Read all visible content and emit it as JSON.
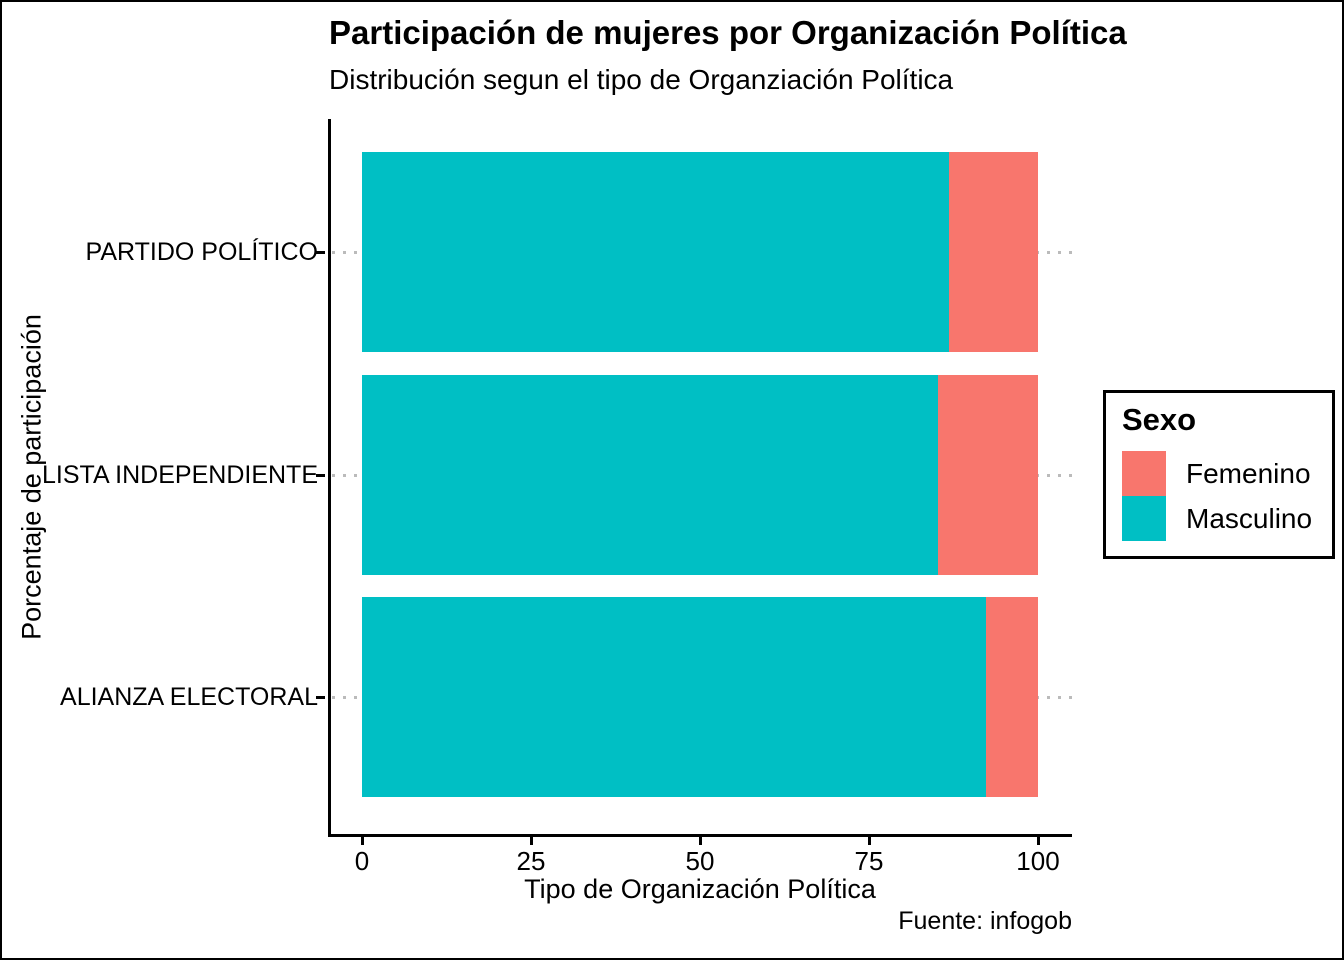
{
  "chart_data": {
    "type": "bar",
    "orientation": "horizontal",
    "stacked": true,
    "stacked_unit": "percent",
    "title": "Participación de mujeres por Organización Política",
    "subtitle": "Distribución segun el tipo de Organziación Política",
    "caption": "Fuente: infogob",
    "xlabel": "Tipo de Organización Política",
    "ylabel": "Porcentaje de participación",
    "categories": [
      "PARTIDO POLÍTICO",
      "LISTA INDEPENDIENTE",
      "ALIANZA ELECTORAL"
    ],
    "series": [
      {
        "name": "Masculino",
        "color": "#00BFC4",
        "values": [
          86.8,
          85.2,
          92.3
        ]
      },
      {
        "name": "Femenino",
        "color": "#F8766D",
        "values": [
          13.2,
          14.8,
          7.7
        ]
      }
    ],
    "x_axis": {
      "ticks": [
        "0",
        "25",
        "50",
        "75",
        "100"
      ],
      "tick_values": [
        0,
        25,
        50,
        75,
        100
      ],
      "range": [
        0,
        100
      ]
    },
    "legend": {
      "title": "Sexo",
      "position": "right",
      "entries": [
        {
          "label": "Femenino",
          "color": "#F8766D"
        },
        {
          "label": "Masculino",
          "color": "#00BFC4"
        }
      ]
    },
    "grid": {
      "horizontal_dotted": true,
      "grid_color": "#BBBBBB"
    }
  }
}
